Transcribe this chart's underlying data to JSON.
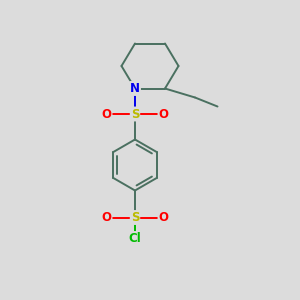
{
  "bg_color": "#dcdcdc",
  "bond_color": "#4a7060",
  "line_width": 1.4,
  "atom_colors": {
    "N": "#0000ee",
    "S": "#bbbb00",
    "O": "#ff0000",
    "Cl": "#00bb00",
    "C": "#4a7060"
  },
  "figsize": [
    3.0,
    3.0
  ],
  "dpi": 100
}
